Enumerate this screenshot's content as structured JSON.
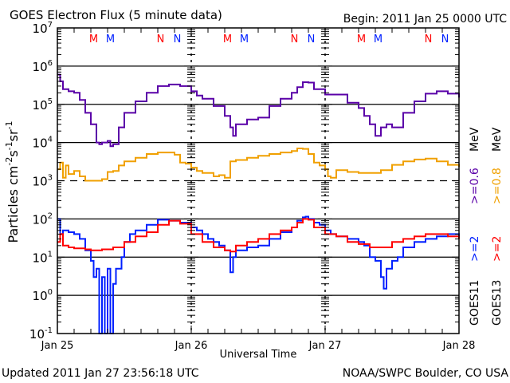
{
  "chart_data": {
    "type": "line",
    "title": "GOES Electron Flux (5 minute data)",
    "begin_label": "Begin: 2011 Jan 25 0000 UTC",
    "xlabel": "Universal Time",
    "ylabel": "Particles cm-2 s-1 sr-1",
    "ylabel_parts": {
      "base": "Particles cm",
      "exp1": "-2",
      "s": "s",
      "exp2": "-1",
      "sr": "sr",
      "exp3": "-1"
    },
    "yscale": "log",
    "ylim": [
      0.1,
      10000000
    ],
    "y_ticks": [
      {
        "value": 10000000,
        "base": "10",
        "exp": "7"
      },
      {
        "value": 1000000,
        "base": "10",
        "exp": "6"
      },
      {
        "value": 100000,
        "base": "10",
        "exp": "5"
      },
      {
        "value": 10000,
        "base": "10",
        "exp": "4"
      },
      {
        "value": 1000,
        "base": "10",
        "exp": "3"
      },
      {
        "value": 100,
        "base": "10",
        "exp": "2"
      },
      {
        "value": 10,
        "base": "10",
        "exp": "1"
      },
      {
        "value": 1,
        "base": "10",
        "exp": "0"
      },
      {
        "value": 0.1,
        "base": "10",
        "exp": "-1"
      }
    ],
    "gridlines": [
      {
        "value": 1000000,
        "style": "solid"
      },
      {
        "value": 100000,
        "style": "solid"
      },
      {
        "value": 10000,
        "style": "solid"
      },
      {
        "value": 1000,
        "style": "dashed"
      },
      {
        "value": 100,
        "style": "solid"
      },
      {
        "value": 10,
        "style": "solid"
      },
      {
        "value": 1,
        "style": "solid"
      }
    ],
    "xlim_hours": [
      0,
      72
    ],
    "x_ticks": [
      {
        "hours": 0,
        "label": "Jan 25"
      },
      {
        "hours": 24,
        "label": "Jan 26"
      },
      {
        "hours": 48,
        "label": "Jan 27"
      },
      {
        "hours": 72,
        "label": "Jan 28"
      }
    ],
    "x_minor_tick_hours": 3,
    "day_divider_style": "dashed",
    "legend": [
      {
        "label": ">=0.6 MeV",
        "color": "#5a00a8",
        "satellite": "GOES11"
      },
      {
        "label": ">=0.8 MeV",
        "color": "#f0a000",
        "satellite": "GOES13"
      },
      {
        "label": ">=2",
        "color": "#0020ff",
        "satellite": "GOES11"
      },
      {
        "label": ">=2",
        "color": "#ff0000",
        "satellite": "GOES13"
      }
    ],
    "legend_units": "MeV",
    "legend_satellites": [
      "GOES11",
      "GOES13"
    ],
    "legend_placement": "right",
    "markers": [
      {
        "hours": 6.5,
        "label": "M",
        "color": "#ff0000"
      },
      {
        "hours": 9.5,
        "label": "M",
        "color": "#0020ff"
      },
      {
        "hours": 18.5,
        "label": "N",
        "color": "#ff0000"
      },
      {
        "hours": 21.5,
        "label": "N",
        "color": "#0020ff"
      },
      {
        "hours": 30.5,
        "label": "M",
        "color": "#ff0000"
      },
      {
        "hours": 33.5,
        "label": "M",
        "color": "#0020ff"
      },
      {
        "hours": 42.5,
        "label": "N",
        "color": "#ff0000"
      },
      {
        "hours": 45.5,
        "label": "N",
        "color": "#0020ff"
      },
      {
        "hours": 54.5,
        "label": "M",
        "color": "#ff0000"
      },
      {
        "hours": 57.5,
        "label": "M",
        "color": "#0020ff"
      },
      {
        "hours": 66.5,
        "label": "N",
        "color": "#ff0000"
      },
      {
        "hours": 69.5,
        "label": "N",
        "color": "#0020ff"
      }
    ],
    "series": [
      {
        "name": "GOES11 >=0.6 MeV",
        "color": "#5a00a8",
        "x_hours": [
          0,
          0.5,
          1,
          2,
          3,
          4,
          5,
          6,
          7,
          7.5,
          8,
          9,
          9.5,
          10,
          11,
          12,
          14,
          16,
          18,
          20,
          22,
          24,
          25,
          26,
          28,
          30,
          31,
          31.5,
          32,
          34,
          36,
          38,
          40,
          42,
          43,
          44,
          45,
          46,
          48,
          50,
          52,
          54,
          55,
          56,
          57,
          58,
          59,
          60,
          62,
          64,
          66,
          68,
          70,
          72
        ],
        "values": [
          600000,
          400000,
          250000,
          220000,
          200000,
          130000,
          60000,
          30000,
          10000,
          9000,
          10000,
          11000,
          8000,
          9000,
          25000,
          60000,
          120000,
          200000,
          300000,
          330000,
          300000,
          220000,
          170000,
          140000,
          90000,
          50000,
          25000,
          15000,
          30000,
          40000,
          45000,
          90000,
          140000,
          200000,
          280000,
          380000,
          370000,
          250000,
          180000,
          180000,
          110000,
          80000,
          50000,
          30000,
          15000,
          25000,
          30000,
          25000,
          60000,
          120000,
          190000,
          220000,
          190000,
          150000
        ]
      },
      {
        "name": "GOES13 >=0.8 MeV",
        "color": "#f0a000",
        "x_hours": [
          0,
          0.5,
          1,
          1.5,
          2,
          3,
          4,
          5,
          6,
          7,
          8,
          9,
          10,
          11,
          12,
          14,
          16,
          18,
          20,
          21,
          22,
          23,
          24,
          25,
          26,
          28,
          29,
          30,
          31,
          32,
          34,
          36,
          38,
          40,
          42,
          43,
          44,
          45,
          46,
          47,
          48,
          48.5,
          49,
          50,
          52,
          54,
          56,
          58,
          60,
          62,
          64,
          66,
          68,
          70,
          72
        ],
        "values": [
          2000,
          3000,
          1200,
          2500,
          1500,
          1800,
          1300,
          1000,
          1000,
          1000,
          1100,
          1700,
          1800,
          2500,
          3200,
          4000,
          5000,
          5500,
          5500,
          4800,
          3000,
          2800,
          2200,
          1800,
          1600,
          1300,
          1400,
          1200,
          3200,
          3500,
          4000,
          4500,
          5000,
          5500,
          6000,
          7000,
          6800,
          5000,
          3000,
          2500,
          2000,
          1300,
          1200,
          1900,
          1700,
          1600,
          1600,
          1900,
          2600,
          3200,
          3600,
          3800,
          3200,
          2600,
          2300
        ]
      },
      {
        "name": "GOES11 >=2 MeV",
        "color": "#0020ff",
        "x_hours": [
          0,
          0.5,
          1,
          2,
          3,
          4,
          5,
          6,
          6.5,
          7,
          7.5,
          8,
          8.5,
          9,
          9.5,
          10,
          10.5,
          11,
          11.5,
          12,
          13,
          14,
          16,
          18,
          20,
          22,
          24,
          25,
          26,
          27,
          28,
          29,
          30,
          31,
          31.5,
          32,
          34,
          36,
          38,
          40,
          42,
          43,
          44,
          44.5,
          45,
          46,
          47,
          48,
          49,
          50,
          52,
          54,
          55,
          56,
          57,
          58,
          58.5,
          59,
          60,
          61,
          62,
          64,
          66,
          68,
          70,
          72
        ],
        "values": [
          100,
          40,
          50,
          45,
          40,
          30,
          15,
          8,
          3,
          5,
          0.1,
          3,
          0.1,
          5,
          0.1,
          2,
          5,
          5,
          10,
          25,
          40,
          50,
          70,
          95,
          90,
          80,
          60,
          50,
          40,
          30,
          25,
          20,
          15,
          4,
          10,
          15,
          18,
          20,
          30,
          45,
          60,
          90,
          110,
          115,
          100,
          80,
          70,
          50,
          40,
          35,
          30,
          25,
          20,
          10,
          8,
          3,
          1.5,
          5,
          8,
          10,
          18,
          25,
          30,
          35,
          40,
          30
        ]
      },
      {
        "name": "GOES13 >=2 MeV",
        "color": "#ff0000",
        "x_hours": [
          0,
          0.5,
          1,
          2,
          3,
          4,
          5,
          6,
          8,
          10,
          12,
          14,
          16,
          18,
          20,
          22,
          24,
          26,
          28,
          30,
          31,
          32,
          34,
          36,
          38,
          40,
          42,
          43,
          44,
          45,
          46,
          48,
          50,
          52,
          54,
          56,
          58,
          60,
          62,
          64,
          66,
          68,
          70,
          72
        ],
        "values": [
          25,
          40,
          20,
          18,
          17,
          17,
          16,
          15,
          16,
          18,
          25,
          35,
          45,
          70,
          90,
          75,
          40,
          25,
          18,
          15,
          14,
          20,
          25,
          30,
          40,
          50,
          60,
          80,
          100,
          95,
          60,
          40,
          35,
          25,
          22,
          18,
          18,
          25,
          30,
          35,
          40,
          40,
          35,
          30
        ]
      }
    ]
  },
  "footer": {
    "updated": "Updated 2011 Jan 27 23:56:18 UTC",
    "source": "NOAA/SWPC Boulder, CO USA"
  }
}
